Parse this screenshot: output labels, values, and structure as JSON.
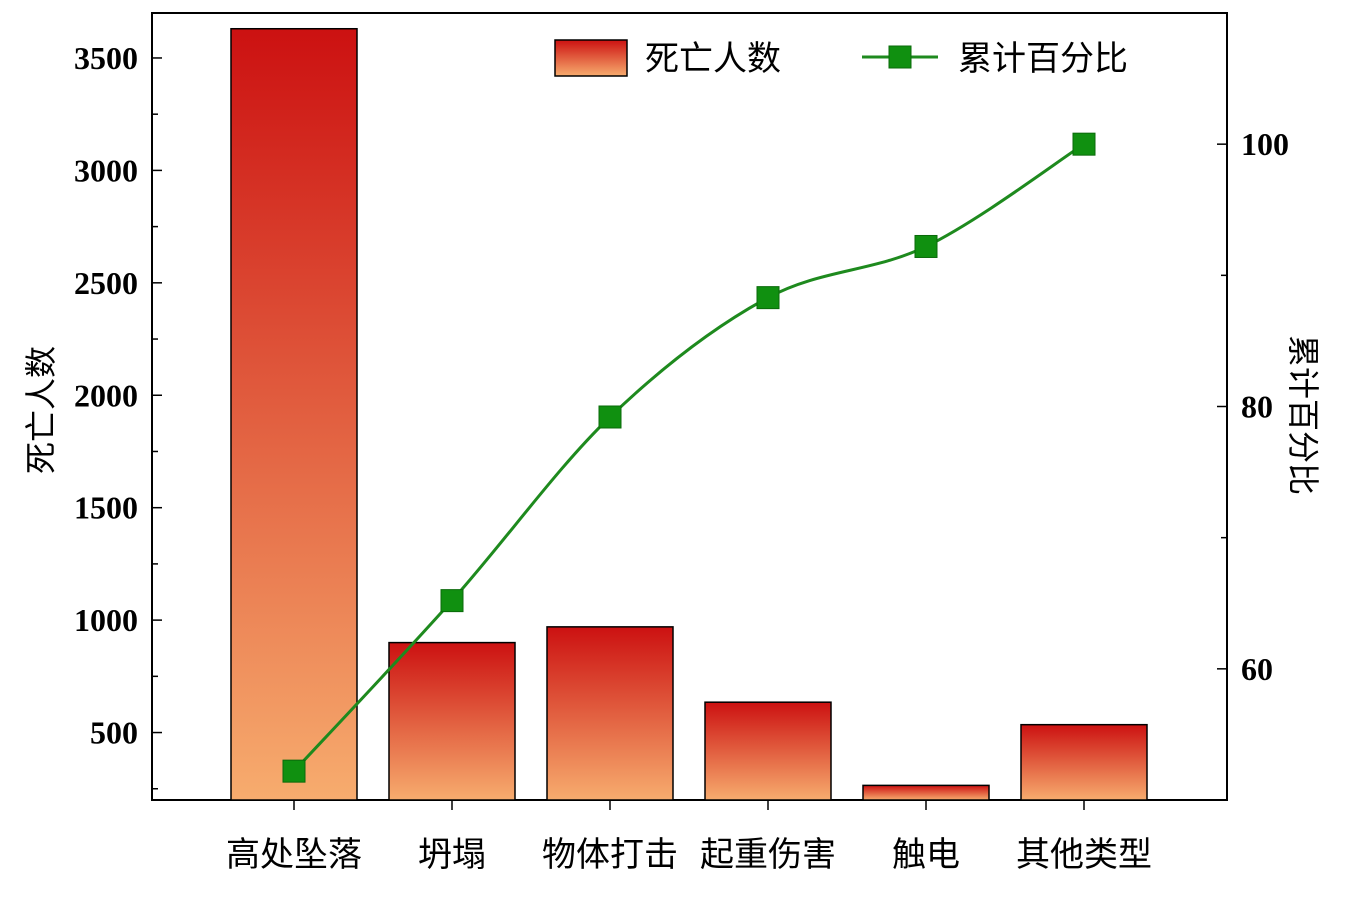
{
  "chart_data": {
    "type": "bar",
    "categories": [
      "高处坠落",
      "坍塌",
      "物体打击",
      "起重伤害",
      "触电",
      "其他类型"
    ],
    "series": [
      {
        "name": "死亡人数",
        "type": "bar",
        "axis": "left",
        "values": [
          3630,
          900,
          970,
          635,
          265,
          535
        ]
      },
      {
        "name": "累计百分比",
        "type": "line",
        "axis": "right",
        "values": [
          52.2,
          65.2,
          79.2,
          88.3,
          92.2,
          100.0
        ]
      }
    ],
    "ylabel": "死亡人数",
    "y2label": "累计百分比",
    "ylim": [
      200,
      3700
    ],
    "y2lim": [
      50,
      110
    ],
    "yticks": [
      500,
      1000,
      1500,
      2000,
      2500,
      3000,
      3500
    ],
    "y2ticks": [
      60,
      80,
      100
    ],
    "legend": {
      "position": "top-right"
    },
    "grid": false,
    "colors": {
      "bar_top": "#cc1111",
      "bar_bottom": "#f7ac6e",
      "line": "#1e8a1e",
      "marker": "#109010"
    }
  }
}
